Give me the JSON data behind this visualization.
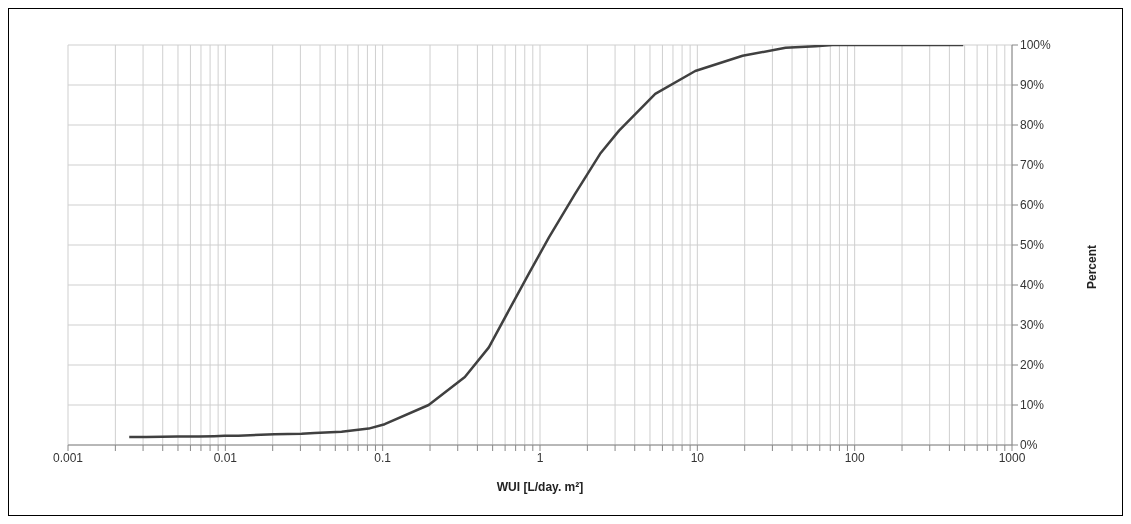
{
  "chart_data": {
    "type": "line",
    "xlabel": "WUI [L/day. m²]",
    "ylabel": "Percent",
    "log": "x",
    "grid": true,
    "line_style": "solid",
    "x": [
      0.00245,
      0.00314,
      0.005,
      0.0068,
      0.0085,
      0.0099,
      0.0121,
      0.0205,
      0.0305,
      0.0369,
      0.0548,
      0.0815,
      0.103,
      0.196,
      0.333,
      0.473,
      0.635,
      0.851,
      1.14,
      1.67,
      2.41,
      3.18,
      5.4,
      9.7,
      19.4,
      36.4,
      56.5,
      72.4,
      101,
      162,
      245,
      407,
      490
    ],
    "series": [
      {
        "color": "#404040",
        "values": [
          2.0,
          2.0,
          2.1,
          2.1,
          2.2,
          2.3,
          2.3,
          2.7,
          2.8,
          3.0,
          3.3,
          4.1,
          5.2,
          10,
          17,
          24.4,
          33.7,
          42.9,
          51.9,
          62.8,
          72.8,
          78.6,
          87.8,
          93.5,
          97.3,
          99.3,
          99.7,
          100,
          100,
          100,
          100,
          100,
          100
        ]
      }
    ],
    "xlim": [
      0.001,
      1000
    ],
    "ylim": [
      0,
      100
    ],
    "xticks": [
      {
        "value": 0.001,
        "label": "0.001"
      },
      {
        "value": 0.002,
        "label": null
      },
      {
        "value": 0.003,
        "label": null
      },
      {
        "value": 0.004,
        "label": null
      },
      {
        "value": 0.005,
        "label": null
      },
      {
        "value": 0.006,
        "label": null
      },
      {
        "value": 0.007,
        "label": null
      },
      {
        "value": 0.008,
        "label": null
      },
      {
        "value": 0.009,
        "label": null
      },
      {
        "value": 0.01,
        "label": "0.01"
      },
      {
        "value": 0.02,
        "label": null
      },
      {
        "value": 0.03,
        "label": null
      },
      {
        "value": 0.04,
        "label": null
      },
      {
        "value": 0.05,
        "label": null
      },
      {
        "value": 0.06,
        "label": null
      },
      {
        "value": 0.07,
        "label": null
      },
      {
        "value": 0.08,
        "label": null
      },
      {
        "value": 0.09,
        "label": null
      },
      {
        "value": 0.1,
        "label": "0.1"
      },
      {
        "value": 0.2,
        "label": null
      },
      {
        "value": 0.3,
        "label": null
      },
      {
        "value": 0.4,
        "label": null
      },
      {
        "value": 0.5,
        "label": null
      },
      {
        "value": 0.6,
        "label": null
      },
      {
        "value": 0.7,
        "label": null
      },
      {
        "value": 0.8,
        "label": null
      },
      {
        "value": 0.9,
        "label": null
      },
      {
        "value": 1,
        "label": "1"
      },
      {
        "value": 2,
        "label": null
      },
      {
        "value": 3,
        "label": null
      },
      {
        "value": 4,
        "label": null
      },
      {
        "value": 5,
        "label": null
      },
      {
        "value": 6,
        "label": null
      },
      {
        "value": 7,
        "label": null
      },
      {
        "value": 8,
        "label": null
      },
      {
        "value": 9,
        "label": null
      },
      {
        "value": 10,
        "label": "10"
      },
      {
        "value": 20,
        "label": null
      },
      {
        "value": 30,
        "label": null
      },
      {
        "value": 40,
        "label": null
      },
      {
        "value": 50,
        "label": null
      },
      {
        "value": 60,
        "label": null
      },
      {
        "value": 70,
        "label": null
      },
      {
        "value": 80,
        "label": null
      },
      {
        "value": 90,
        "label": null
      },
      {
        "value": 100,
        "label": "100"
      },
      {
        "value": 200,
        "label": null
      },
      {
        "value": 300,
        "label": null
      },
      {
        "value": 400,
        "label": null
      },
      {
        "value": 500,
        "label": null
      },
      {
        "value": 600,
        "label": null
      },
      {
        "value": 700,
        "label": null
      },
      {
        "value": 800,
        "label": null
      },
      {
        "value": 900,
        "label": null
      },
      {
        "value": 1000,
        "label": "1000"
      }
    ],
    "yticks": [
      {
        "value": 0,
        "label": "0%"
      },
      {
        "value": 10,
        "label": "10%"
      },
      {
        "value": 20,
        "label": "20%"
      },
      {
        "value": 30,
        "label": "30%"
      },
      {
        "value": 40,
        "label": "40%"
      },
      {
        "value": 50,
        "label": "50%"
      },
      {
        "value": 60,
        "label": "60%"
      },
      {
        "value": 70,
        "label": "70%"
      },
      {
        "value": 80,
        "label": "80%"
      },
      {
        "value": 90,
        "label": "90%"
      },
      {
        "value": 100,
        "label": "100%"
      }
    ]
  }
}
